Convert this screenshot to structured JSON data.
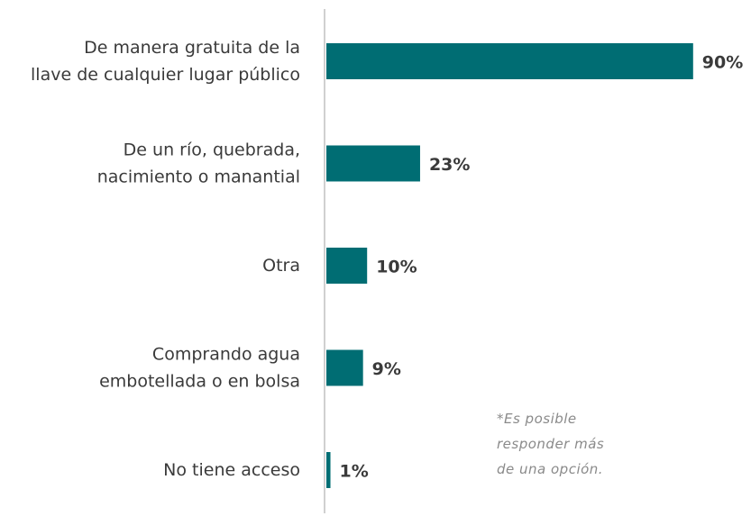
{
  "chart_data": {
    "type": "bar",
    "orientation": "horizontal",
    "categories": [
      "De manera gratuita de la\nllave de cualquier lugar público",
      "De un río, quebrada,\nnacimiento o manantial",
      "Otra",
      "Comprando agua\nembotellada o en bolsa",
      "No tiene acceso"
    ],
    "values": [
      90,
      23,
      10,
      9,
      1
    ],
    "value_labels": [
      "90%",
      "23%",
      "10%",
      "9%",
      "1%"
    ],
    "color": "#006d73",
    "xlim": [
      0,
      100
    ],
    "note": "*Es posible\nresponder más\nde una opción."
  }
}
